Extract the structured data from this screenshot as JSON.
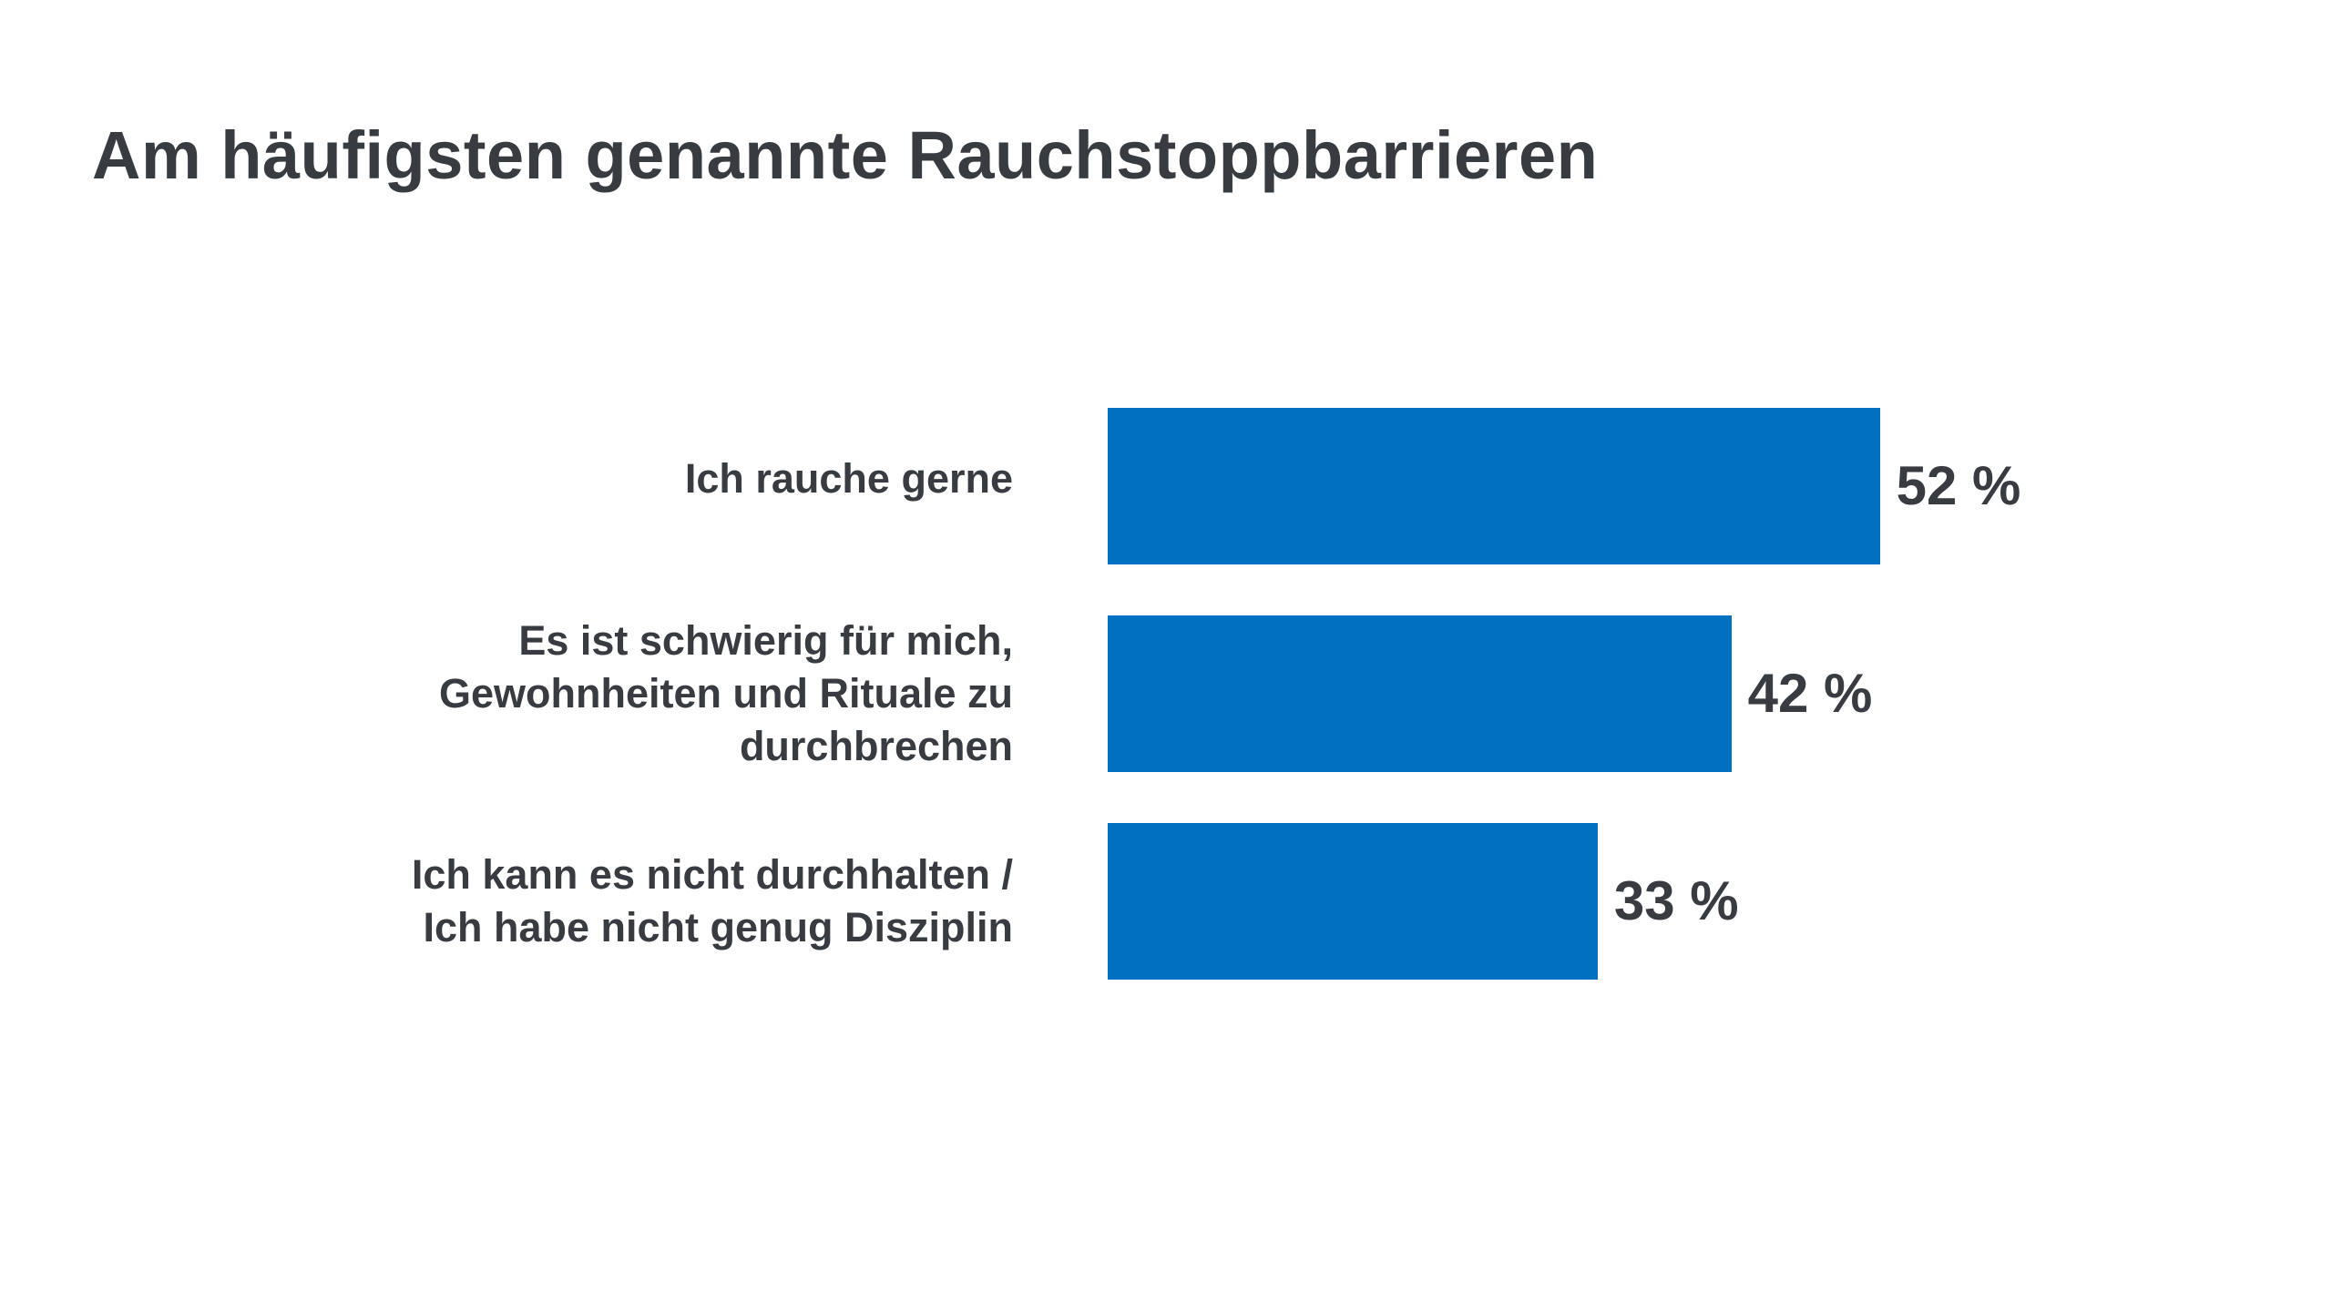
{
  "title": "Am häufigsten genannte Rauchstoppbarrieren",
  "chart_data": {
    "type": "bar",
    "orientation": "horizontal",
    "title": "Am häufigsten genannte Rauchstoppbarrieren",
    "categories": [
      [
        "Ich rauche gerne"
      ],
      [
        "Es ist schwierig für mich,",
        "Gewohnheiten und Rituale zu",
        "durchbrechen"
      ],
      [
        "Ich kann es nicht durchhalten /",
        "Ich habe nicht genug Disziplin"
      ]
    ],
    "values": [
      52,
      42,
      33
    ],
    "value_labels": [
      "52 %",
      "42 %",
      "33 %"
    ],
    "unit": "%",
    "bar_color": "#0070c0",
    "text_color": "#383b40",
    "grid": false,
    "legend": "none",
    "xlim": [
      0,
      100
    ]
  }
}
